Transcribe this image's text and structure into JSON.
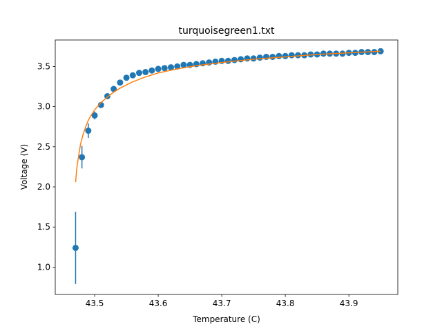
{
  "chart_data": {
    "type": "scatter",
    "title": "turquoisegreen1.txt",
    "xlabel": "Temperature (C)",
    "ylabel": "Voltage (V)",
    "xlim": [
      43.438,
      43.977
    ],
    "ylim": [
      0.66,
      3.83
    ],
    "xticks": [
      43.5,
      43.6,
      43.7,
      43.8,
      43.9
    ],
    "xtick_labels": [
      "43.5",
      "43.6",
      "43.7",
      "43.8",
      "43.9"
    ],
    "yticks": [
      1.0,
      1.5,
      2.0,
      2.5,
      3.0,
      3.5
    ],
    "ytick_labels": [
      "1.0",
      "1.5",
      "2.0",
      "2.5",
      "3.0",
      "3.5"
    ],
    "grid": false,
    "colors": {
      "data": "#1f77b4",
      "fit": "#ff7f0e"
    },
    "series": [
      {
        "kind": "errorbar-points",
        "x": [
          43.47,
          43.48,
          43.49,
          43.5,
          43.51,
          43.52,
          43.53,
          43.54,
          43.55,
          43.56,
          43.57,
          43.58,
          43.59,
          43.6,
          43.61,
          43.62,
          43.63,
          43.64,
          43.65,
          43.66,
          43.67,
          43.68,
          43.69,
          43.7,
          43.71,
          43.72,
          43.73,
          43.74,
          43.75,
          43.76,
          43.77,
          43.78,
          43.79,
          43.8,
          43.81,
          43.82,
          43.83,
          43.84,
          43.85,
          43.86,
          43.87,
          43.88,
          43.89,
          43.9,
          43.91,
          43.92,
          43.93,
          43.94,
          43.95
        ],
        "y": [
          1.24,
          2.37,
          2.7,
          2.89,
          3.02,
          3.13,
          3.22,
          3.3,
          3.36,
          3.39,
          3.42,
          3.43,
          3.45,
          3.47,
          3.48,
          3.49,
          3.5,
          3.52,
          3.52,
          3.53,
          3.54,
          3.55,
          3.56,
          3.57,
          3.57,
          3.58,
          3.59,
          3.6,
          3.6,
          3.61,
          3.62,
          3.62,
          3.63,
          3.63,
          3.64,
          3.64,
          3.64,
          3.65,
          3.65,
          3.66,
          3.66,
          3.66,
          3.66,
          3.67,
          3.67,
          3.68,
          3.68,
          3.68,
          3.69
        ],
        "yerr": [
          0.45,
          0.14,
          0.09,
          0.05,
          0.03,
          0.03,
          0.02,
          0.02,
          0.02,
          0.02,
          0.01,
          0.01,
          0.01,
          0.01,
          0.01,
          0.01,
          0.01,
          0.01,
          0.01,
          0.01,
          0.01,
          0.01,
          0.01,
          0.01,
          0.01,
          0.01,
          0.01,
          0.01,
          0.01,
          0.01,
          0.01,
          0.01,
          0.01,
          0.01,
          0.01,
          0.01,
          0.01,
          0.01,
          0.01,
          0.01,
          0.01,
          0.01,
          0.01,
          0.01,
          0.01,
          0.01,
          0.01,
          0.01,
          0.01
        ]
      },
      {
        "kind": "fit-line",
        "x": [
          43.47,
          43.472,
          43.475,
          43.478,
          43.482,
          43.486,
          43.49,
          43.495,
          43.5,
          43.51,
          43.52,
          43.53,
          43.54,
          43.55,
          43.56,
          43.58,
          43.6,
          43.63,
          43.66,
          43.7,
          43.75,
          43.8,
          43.85,
          43.9,
          43.95
        ],
        "y": [
          2.06,
          2.24,
          2.4,
          2.54,
          2.66,
          2.75,
          2.83,
          2.9,
          2.96,
          3.05,
          3.12,
          3.18,
          3.23,
          3.27,
          3.31,
          3.37,
          3.42,
          3.47,
          3.51,
          3.55,
          3.59,
          3.62,
          3.65,
          3.67,
          3.69
        ]
      }
    ]
  }
}
